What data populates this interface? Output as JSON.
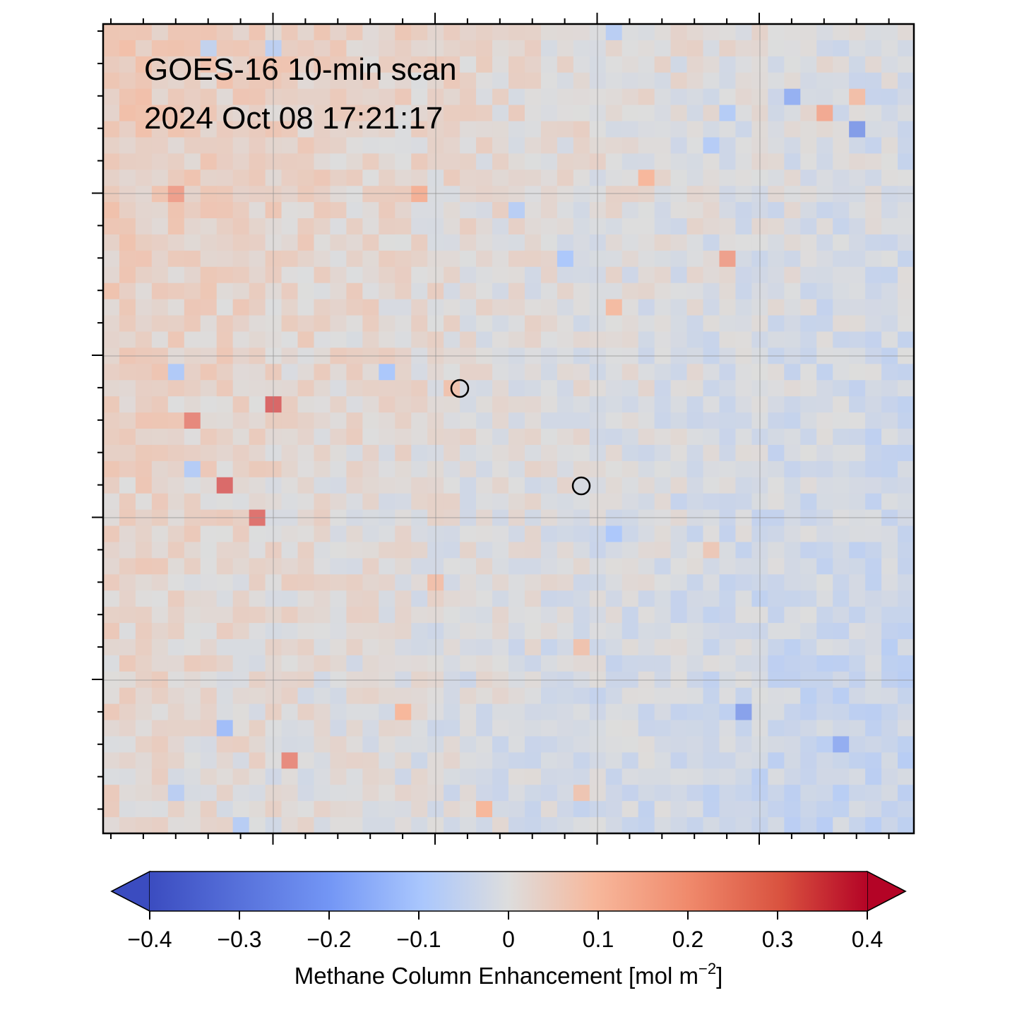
{
  "annotation": {
    "line1": "GOES-16 10-min scan",
    "line2": "2024 Oct 08  17:21:17"
  },
  "map": {
    "grid": "on",
    "markers": [
      "open-circle",
      "open-circle"
    ],
    "field_pattern": "mostly near zero; slight positive (salmon) in upper-left, slight negative (light blue) in right/lower-right; a few stronger pixels near the markers"
  },
  "colorbar": {
    "colormap": "coolwarm",
    "min": -0.4,
    "max": 0.4,
    "extend": "both",
    "ticks": [
      "−0.4",
      "−0.3",
      "−0.2",
      "−0.1",
      "0",
      "0.1",
      "0.2",
      "0.3",
      "0.4"
    ],
    "label_main": "Methane Column Enhancement [mol m",
    "label_sup": "−2",
    "label_end": "]",
    "colors": {
      "low": "#3b4cc0",
      "mid_low": "#aac7fd",
      "center": "#dddddd",
      "mid_high": "#f7b89c",
      "high": "#b40426"
    }
  }
}
